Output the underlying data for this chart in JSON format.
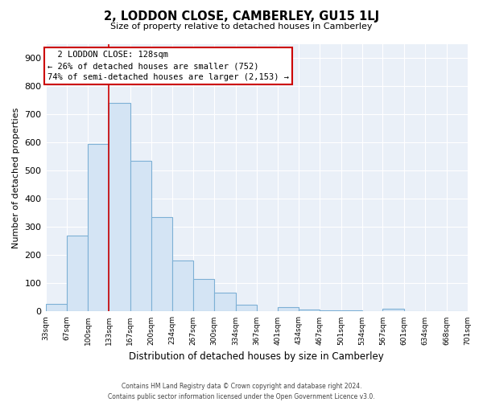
{
  "title": "2, LODDON CLOSE, CAMBERLEY, GU15 1LJ",
  "subtitle": "Size of property relative to detached houses in Camberley",
  "xlabel": "Distribution of detached houses by size in Camberley",
  "ylabel": "Number of detached properties",
  "bar_color": "#d4e4f4",
  "bar_edge_color": "#7db0d5",
  "background_color": "#ffffff",
  "plot_bg_color": "#eaf0f8",
  "grid_color": "#ffffff",
  "property_line_x": 133,
  "property_line_color": "#cc0000",
  "annotation_text_line1": "2 LODDON CLOSE: 128sqm",
  "annotation_text_line2": "← 26% of detached houses are smaller (752)",
  "annotation_text_line3": "74% of semi-detached houses are larger (2,153) →",
  "annotation_box_color": "#ffffff",
  "annotation_box_edge": "#cc0000",
  "footer_line1": "Contains HM Land Registry data © Crown copyright and database right 2024.",
  "footer_line2": "Contains public sector information licensed under the Open Government Licence v3.0.",
  "bin_edges": [
    33,
    67,
    100,
    133,
    167,
    200,
    234,
    267,
    300,
    334,
    367,
    401,
    434,
    467,
    501,
    534,
    567,
    601,
    634,
    668,
    701
  ],
  "bin_heights": [
    27,
    270,
    597,
    742,
    537,
    335,
    180,
    115,
    66,
    25,
    0,
    15,
    8,
    5,
    3,
    0,
    10,
    0,
    0,
    0
  ],
  "ylim": [
    0,
    950
  ],
  "yticks": [
    0,
    100,
    200,
    300,
    400,
    500,
    600,
    700,
    800,
    900
  ]
}
